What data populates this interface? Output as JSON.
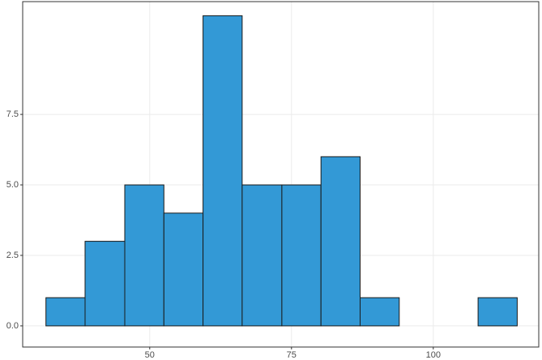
{
  "chart_data": {
    "type": "histogram",
    "bins": [
      31.7,
      38.6,
      45.6,
      52.5,
      59.4,
      66.3,
      73.3,
      80.2,
      87.1,
      94.0,
      101.0,
      107.9,
      114.8
    ],
    "values": [
      1,
      3,
      5,
      4,
      11,
      5,
      5,
      6,
      1,
      0,
      0,
      1
    ],
    "color": "#3399d6",
    "xlim": [
      27.6,
      118.6
    ],
    "xticks": [
      50,
      75,
      100
    ],
    "ylim": [
      -0.75,
      11.5
    ],
    "yticks": [
      {
        "value": 0,
        "label": "0.0"
      },
      2.5,
      {
        "value": 5,
        "label": "5.0"
      },
      7.5
    ],
    "grid": true
  }
}
